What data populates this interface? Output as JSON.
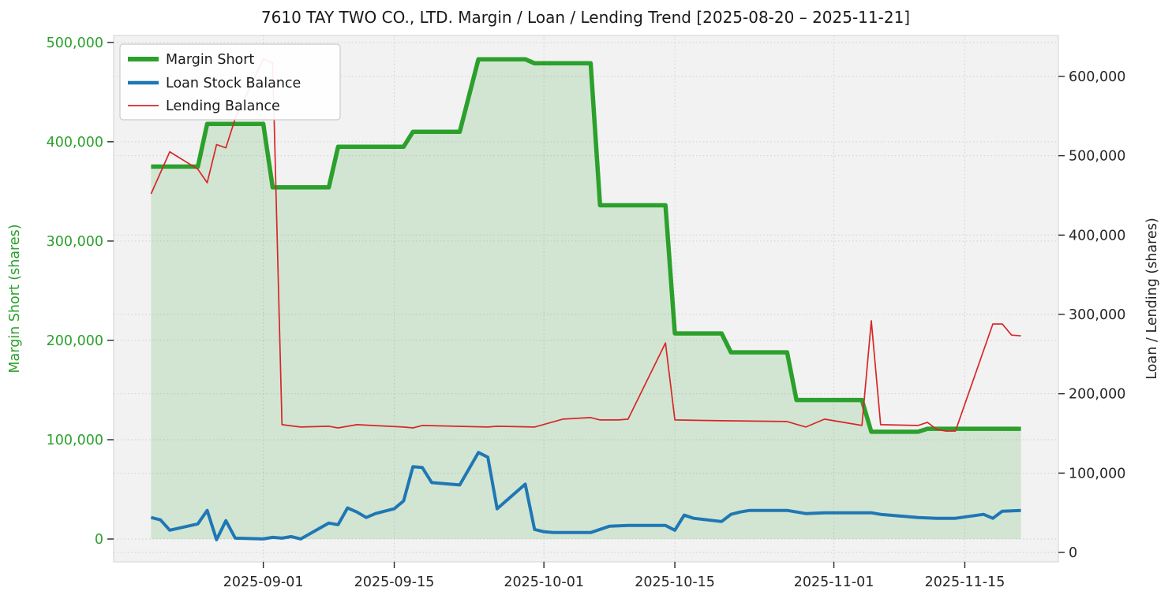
{
  "chart_data": {
    "type": "line",
    "title": "7610 TAY TWO CO., LTD. Margin / Loan / Lending Trend [2025-08-20 – 2025-11-21]",
    "grid": true,
    "plot_bg": "#f2f2f2",
    "grid_color": "#cfcfcf",
    "spine_color": "#d9d9d9",
    "tick_color": "#262626",
    "epoch": "2025-08-20",
    "xlim_days": [
      -4,
      97
    ],
    "x_axis": {
      "tick_dates": [
        "2025-09-01",
        "2025-09-15",
        "2025-10-01",
        "2025-10-15",
        "2025-11-01",
        "2025-11-15"
      ],
      "tick_labels": [
        "2025-09-01",
        "2025-09-15",
        "2025-10-01",
        "2025-10-15",
        "2025-11-01",
        "2025-11-15"
      ]
    },
    "left_axis": {
      "label": "Margin Short (shares)",
      "color": "#2ca02c",
      "ylim": [
        -23000,
        507000
      ],
      "ticks": [
        0,
        100000,
        200000,
        300000,
        400000,
        500000
      ],
      "tick_labels": [
        "0",
        "100,000",
        "200,000",
        "300,000",
        "400,000",
        "500,000"
      ]
    },
    "right_axis": {
      "label": "Loan / Lending (shares)",
      "color": "#262626",
      "ylim": [
        -11900,
        651600
      ],
      "ticks": [
        0,
        100000,
        200000,
        300000,
        400000,
        500000,
        600000
      ],
      "tick_labels": [
        "0",
        "100,000",
        "200,000",
        "300,000",
        "400,000",
        "500,000",
        "600,000"
      ]
    },
    "legend": {
      "position": "upper-left",
      "entries": [
        "Margin Short",
        "Loan Stock Balance",
        "Lending Balance"
      ]
    },
    "series": [
      {
        "name": "Margin Short",
        "axis": "left",
        "color": "#2ca02c",
        "width": 5.5,
        "fill_to_zero": true,
        "fill_opacity": 0.16,
        "points": [
          [
            "2025-08-20",
            375000
          ],
          [
            "2025-08-25",
            375000
          ],
          [
            "2025-08-26",
            418000
          ],
          [
            "2025-09-01",
            418000
          ],
          [
            "2025-09-02",
            354000
          ],
          [
            "2025-09-08",
            354000
          ],
          [
            "2025-09-09",
            395000
          ],
          [
            "2025-09-16",
            395000
          ],
          [
            "2025-09-17",
            410000
          ],
          [
            "2025-09-22",
            410000
          ],
          [
            "2025-09-24",
            483000
          ],
          [
            "2025-09-29",
            483000
          ],
          [
            "2025-09-30",
            479000
          ],
          [
            "2025-10-06",
            479000
          ],
          [
            "2025-10-07",
            336000
          ],
          [
            "2025-10-14",
            336000
          ],
          [
            "2025-10-15",
            207000
          ],
          [
            "2025-10-20",
            207000
          ],
          [
            "2025-10-21",
            188000
          ],
          [
            "2025-10-27",
            188000
          ],
          [
            "2025-10-28",
            140000
          ],
          [
            "2025-11-04",
            140000
          ],
          [
            "2025-11-05",
            108000
          ],
          [
            "2025-11-10",
            108000
          ],
          [
            "2025-11-11",
            111000
          ],
          [
            "2025-11-21",
            111000
          ]
        ]
      },
      {
        "name": "Loan Stock Balance",
        "axis": "right",
        "color": "#1f77b4",
        "width": 4,
        "points": [
          [
            "2025-08-20",
            44000
          ],
          [
            "2025-08-21",
            41000
          ],
          [
            "2025-08-22",
            28000
          ],
          [
            "2025-08-25",
            36000
          ],
          [
            "2025-08-26",
            53000
          ],
          [
            "2025-08-27",
            16000
          ],
          [
            "2025-08-28",
            40000
          ],
          [
            "2025-08-29",
            18000
          ],
          [
            "2025-09-01",
            17000
          ],
          [
            "2025-09-02",
            19000
          ],
          [
            "2025-09-03",
            18000
          ],
          [
            "2025-09-04",
            20000
          ],
          [
            "2025-09-05",
            17000
          ],
          [
            "2025-09-08",
            37000
          ],
          [
            "2025-09-09",
            35000
          ],
          [
            "2025-09-10",
            56000
          ],
          [
            "2025-09-11",
            51000
          ],
          [
            "2025-09-12",
            44000
          ],
          [
            "2025-09-13",
            49000
          ],
          [
            "2025-09-15",
            55000
          ],
          [
            "2025-09-16",
            65000
          ],
          [
            "2025-09-17",
            108000
          ],
          [
            "2025-09-18",
            107000
          ],
          [
            "2025-09-19",
            88000
          ],
          [
            "2025-09-22",
            85000
          ],
          [
            "2025-09-24",
            126000
          ],
          [
            "2025-09-25",
            120000
          ],
          [
            "2025-09-26",
            55000
          ],
          [
            "2025-09-29",
            86000
          ],
          [
            "2025-09-30",
            29000
          ],
          [
            "2025-10-01",
            26000
          ],
          [
            "2025-10-02",
            25000
          ],
          [
            "2025-10-06",
            25000
          ],
          [
            "2025-10-08",
            33000
          ],
          [
            "2025-10-10",
            34000
          ],
          [
            "2025-10-14",
            34000
          ],
          [
            "2025-10-15",
            28000
          ],
          [
            "2025-10-16",
            47000
          ],
          [
            "2025-10-17",
            43000
          ],
          [
            "2025-10-20",
            39000
          ],
          [
            "2025-10-21",
            48000
          ],
          [
            "2025-10-22",
            51000
          ],
          [
            "2025-10-23",
            53000
          ],
          [
            "2025-10-27",
            53000
          ],
          [
            "2025-10-29",
            49000
          ],
          [
            "2025-10-31",
            50000
          ],
          [
            "2025-11-05",
            50000
          ],
          [
            "2025-11-06",
            48000
          ],
          [
            "2025-11-07",
            47000
          ],
          [
            "2025-11-10",
            44000
          ],
          [
            "2025-11-12",
            43000
          ],
          [
            "2025-11-14",
            43000
          ],
          [
            "2025-11-17",
            48000
          ],
          [
            "2025-11-18",
            43000
          ],
          [
            "2025-11-19",
            52000
          ],
          [
            "2025-11-21",
            53000
          ]
        ]
      },
      {
        "name": "Lending Balance",
        "axis": "right",
        "color": "#d62728",
        "width": 1.7,
        "points": [
          [
            "2025-08-20",
            452000
          ],
          [
            "2025-08-22",
            505000
          ],
          [
            "2025-08-25",
            483000
          ],
          [
            "2025-08-26",
            466000
          ],
          [
            "2025-08-27",
            514000
          ],
          [
            "2025-08-28",
            510000
          ],
          [
            "2025-08-29",
            547000
          ],
          [
            "2025-09-01",
            622000
          ],
          [
            "2025-09-02",
            617000
          ],
          [
            "2025-09-03",
            161000
          ],
          [
            "2025-09-05",
            158000
          ],
          [
            "2025-09-08",
            159000
          ],
          [
            "2025-09-09",
            157000
          ],
          [
            "2025-09-11",
            161000
          ],
          [
            "2025-09-16",
            158000
          ],
          [
            "2025-09-17",
            157000
          ],
          [
            "2025-09-18",
            160000
          ],
          [
            "2025-09-25",
            158000
          ],
          [
            "2025-09-26",
            159000
          ],
          [
            "2025-09-30",
            158000
          ],
          [
            "2025-10-03",
            168000
          ],
          [
            "2025-10-06",
            170000
          ],
          [
            "2025-10-07",
            167000
          ],
          [
            "2025-10-09",
            167000
          ],
          [
            "2025-10-10",
            168000
          ],
          [
            "2025-10-14",
            264000
          ],
          [
            "2025-10-15",
            167000
          ],
          [
            "2025-10-20",
            166000
          ],
          [
            "2025-10-27",
            165000
          ],
          [
            "2025-10-29",
            158000
          ],
          [
            "2025-10-31",
            168000
          ],
          [
            "2025-11-04",
            160000
          ],
          [
            "2025-11-05",
            292000
          ],
          [
            "2025-11-06",
            161000
          ],
          [
            "2025-11-10",
            160000
          ],
          [
            "2025-11-11",
            164000
          ],
          [
            "2025-11-12",
            155000
          ],
          [
            "2025-11-13",
            153000
          ],
          [
            "2025-11-14",
            153000
          ],
          [
            "2025-11-18",
            288000
          ],
          [
            "2025-11-19",
            288000
          ],
          [
            "2025-11-20",
            274000
          ],
          [
            "2025-11-21",
            273000
          ]
        ]
      }
    ]
  }
}
